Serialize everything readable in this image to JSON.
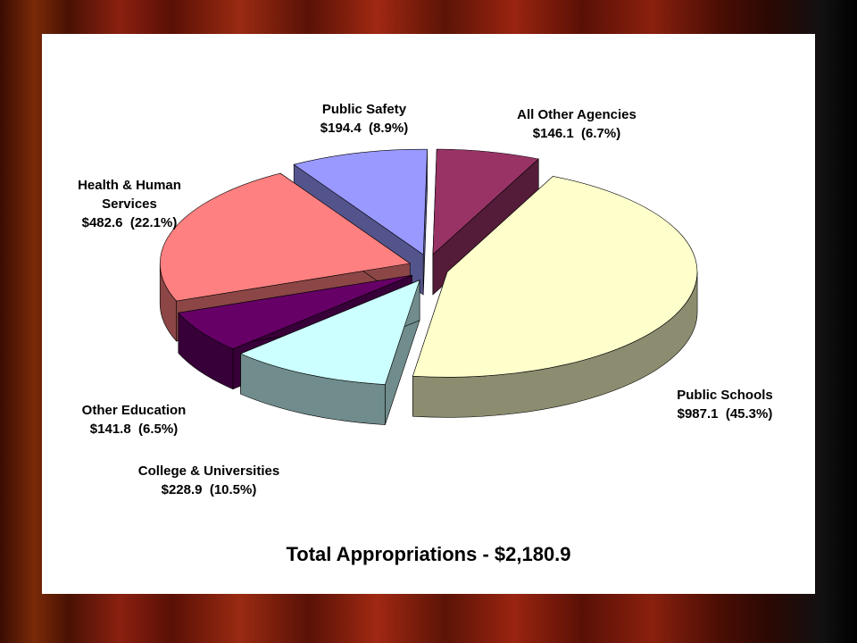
{
  "chart_data": {
    "type": "pie3d",
    "title": "Total Appropriations - $2,180.9",
    "categories": [
      "Public Schools",
      "College & Universities",
      "Other Education",
      "Health & Human Services",
      "Public Safety",
      "All Other Agencies"
    ],
    "values": [
      987.1,
      228.9,
      141.8,
      482.6,
      194.4,
      146.1
    ],
    "value_labels": [
      "$987.1  (45.3%)",
      "$228.9  (10.5%)",
      "$141.8  (6.5%)",
      "$482.6  (22.1%)",
      "$194.4  (8.9%)",
      "$146.1  (6.7%)"
    ],
    "colors": [
      "#ffffcc",
      "#ccffff",
      "#660066",
      "#ff8080",
      "#9999ff",
      "#993366"
    ]
  }
}
